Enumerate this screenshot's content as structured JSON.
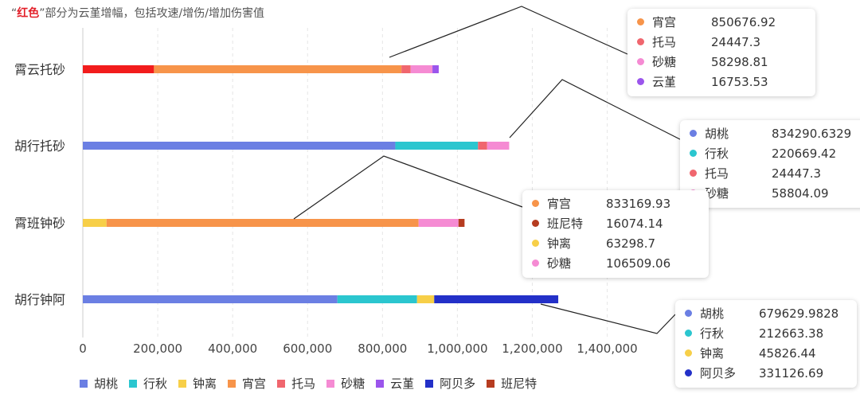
{
  "subtitle": {
    "quote_open": "“",
    "highlight": "红色",
    "quote_close": "”",
    "rest": "部分为云堇增幅，包括攻速/增伤/增加伤害值"
  },
  "colors": {
    "胡桃": "#6b7fe3",
    "行秋": "#2bc6cf",
    "钟离": "#f7cf48",
    "宵宫": "#f7944a",
    "托马": "#f0666e",
    "砂糖": "#f58bd3",
    "云堇": "#9b55ec",
    "阿贝多": "#2330c8",
    "班尼特": "#b63c20",
    "云堇增幅": "#f21c1c"
  },
  "chart_data": {
    "type": "bar",
    "orientation": "horizontal",
    "stacked": true,
    "xlim": [
      0,
      1500000
    ],
    "x_ticks": [
      "0",
      "200,000",
      "400,000",
      "600,000",
      "800,000",
      "1,000,000",
      "1,200,000",
      "1,400,000"
    ],
    "x_tick_values": [
      0,
      200000,
      400000,
      600000,
      800000,
      1000000,
      1200000,
      1400000
    ],
    "grid": "vertical-dashed",
    "legend_position": "bottom",
    "legend": [
      "胡桃",
      "行秋",
      "钟离",
      "宵宫",
      "托马",
      "砂糖",
      "云堇",
      "阿贝多",
      "班尼特"
    ],
    "categories": [
      "霄云托砂",
      "胡行托砂",
      "霄班钟砂",
      "胡行钟阿"
    ],
    "bars": [
      {
        "category": "霄云托砂",
        "segments": [
          {
            "name": "云堇增幅",
            "value": 190000,
            "highlight": true
          },
          {
            "name": "宵宫",
            "value": 660676.92
          },
          {
            "name": "托马",
            "value": 24447.3
          },
          {
            "name": "砂糖",
            "value": 58298.81
          },
          {
            "name": "云堇",
            "value": 16753.53
          }
        ]
      },
      {
        "category": "胡行托砂",
        "segments": [
          {
            "name": "胡桃",
            "value": 834290.6329
          },
          {
            "name": "行秋",
            "value": 220669.42
          },
          {
            "name": "托马",
            "value": 24447.3
          },
          {
            "name": "砂糖",
            "value": 58804.09
          }
        ]
      },
      {
        "category": "霄班钟砂",
        "segments": [
          {
            "name": "钟离",
            "value": 63298.7
          },
          {
            "name": "宵宫",
            "value": 833169.93
          },
          {
            "name": "砂糖",
            "value": 106509.06
          },
          {
            "name": "班尼特",
            "value": 16074.14
          }
        ]
      },
      {
        "category": "胡行钟阿",
        "segments": [
          {
            "name": "胡桃",
            "value": 679629.9828
          },
          {
            "name": "行秋",
            "value": 212663.38
          },
          {
            "name": "钟离",
            "value": 45826.44
          },
          {
            "name": "阿贝多",
            "value": 331126.69
          }
        ]
      }
    ],
    "annotations": [
      {
        "category": "霄云托砂",
        "rows": [
          {
            "name": "宵宫",
            "value": "850676.92"
          },
          {
            "name": "托马",
            "value": "24447.3"
          },
          {
            "name": "砂糖",
            "value": "58298.81"
          },
          {
            "name": "云堇",
            "value": "16753.53"
          }
        ]
      },
      {
        "category": "胡行托砂",
        "rows": [
          {
            "name": "胡桃",
            "value": "834290.6329"
          },
          {
            "name": "行秋",
            "value": "220669.42"
          },
          {
            "name": "托马",
            "value": "24447.3"
          },
          {
            "name": "砂糖",
            "value": "58804.09"
          }
        ]
      },
      {
        "category": "霄班钟砂",
        "rows": [
          {
            "name": "宵宫",
            "value": "833169.93"
          },
          {
            "name": "班尼特",
            "value": "16074.14"
          },
          {
            "name": "钟离",
            "value": "63298.7"
          },
          {
            "name": "砂糖",
            "value": "106509.06"
          }
        ]
      },
      {
        "category": "胡行钟阿",
        "rows": [
          {
            "name": "胡桃",
            "value": "679629.9828"
          },
          {
            "name": "行秋",
            "value": "212663.38"
          },
          {
            "name": "钟离",
            "value": "45826.44"
          },
          {
            "name": "阿贝多",
            "value": "331126.69"
          }
        ]
      }
    ]
  }
}
